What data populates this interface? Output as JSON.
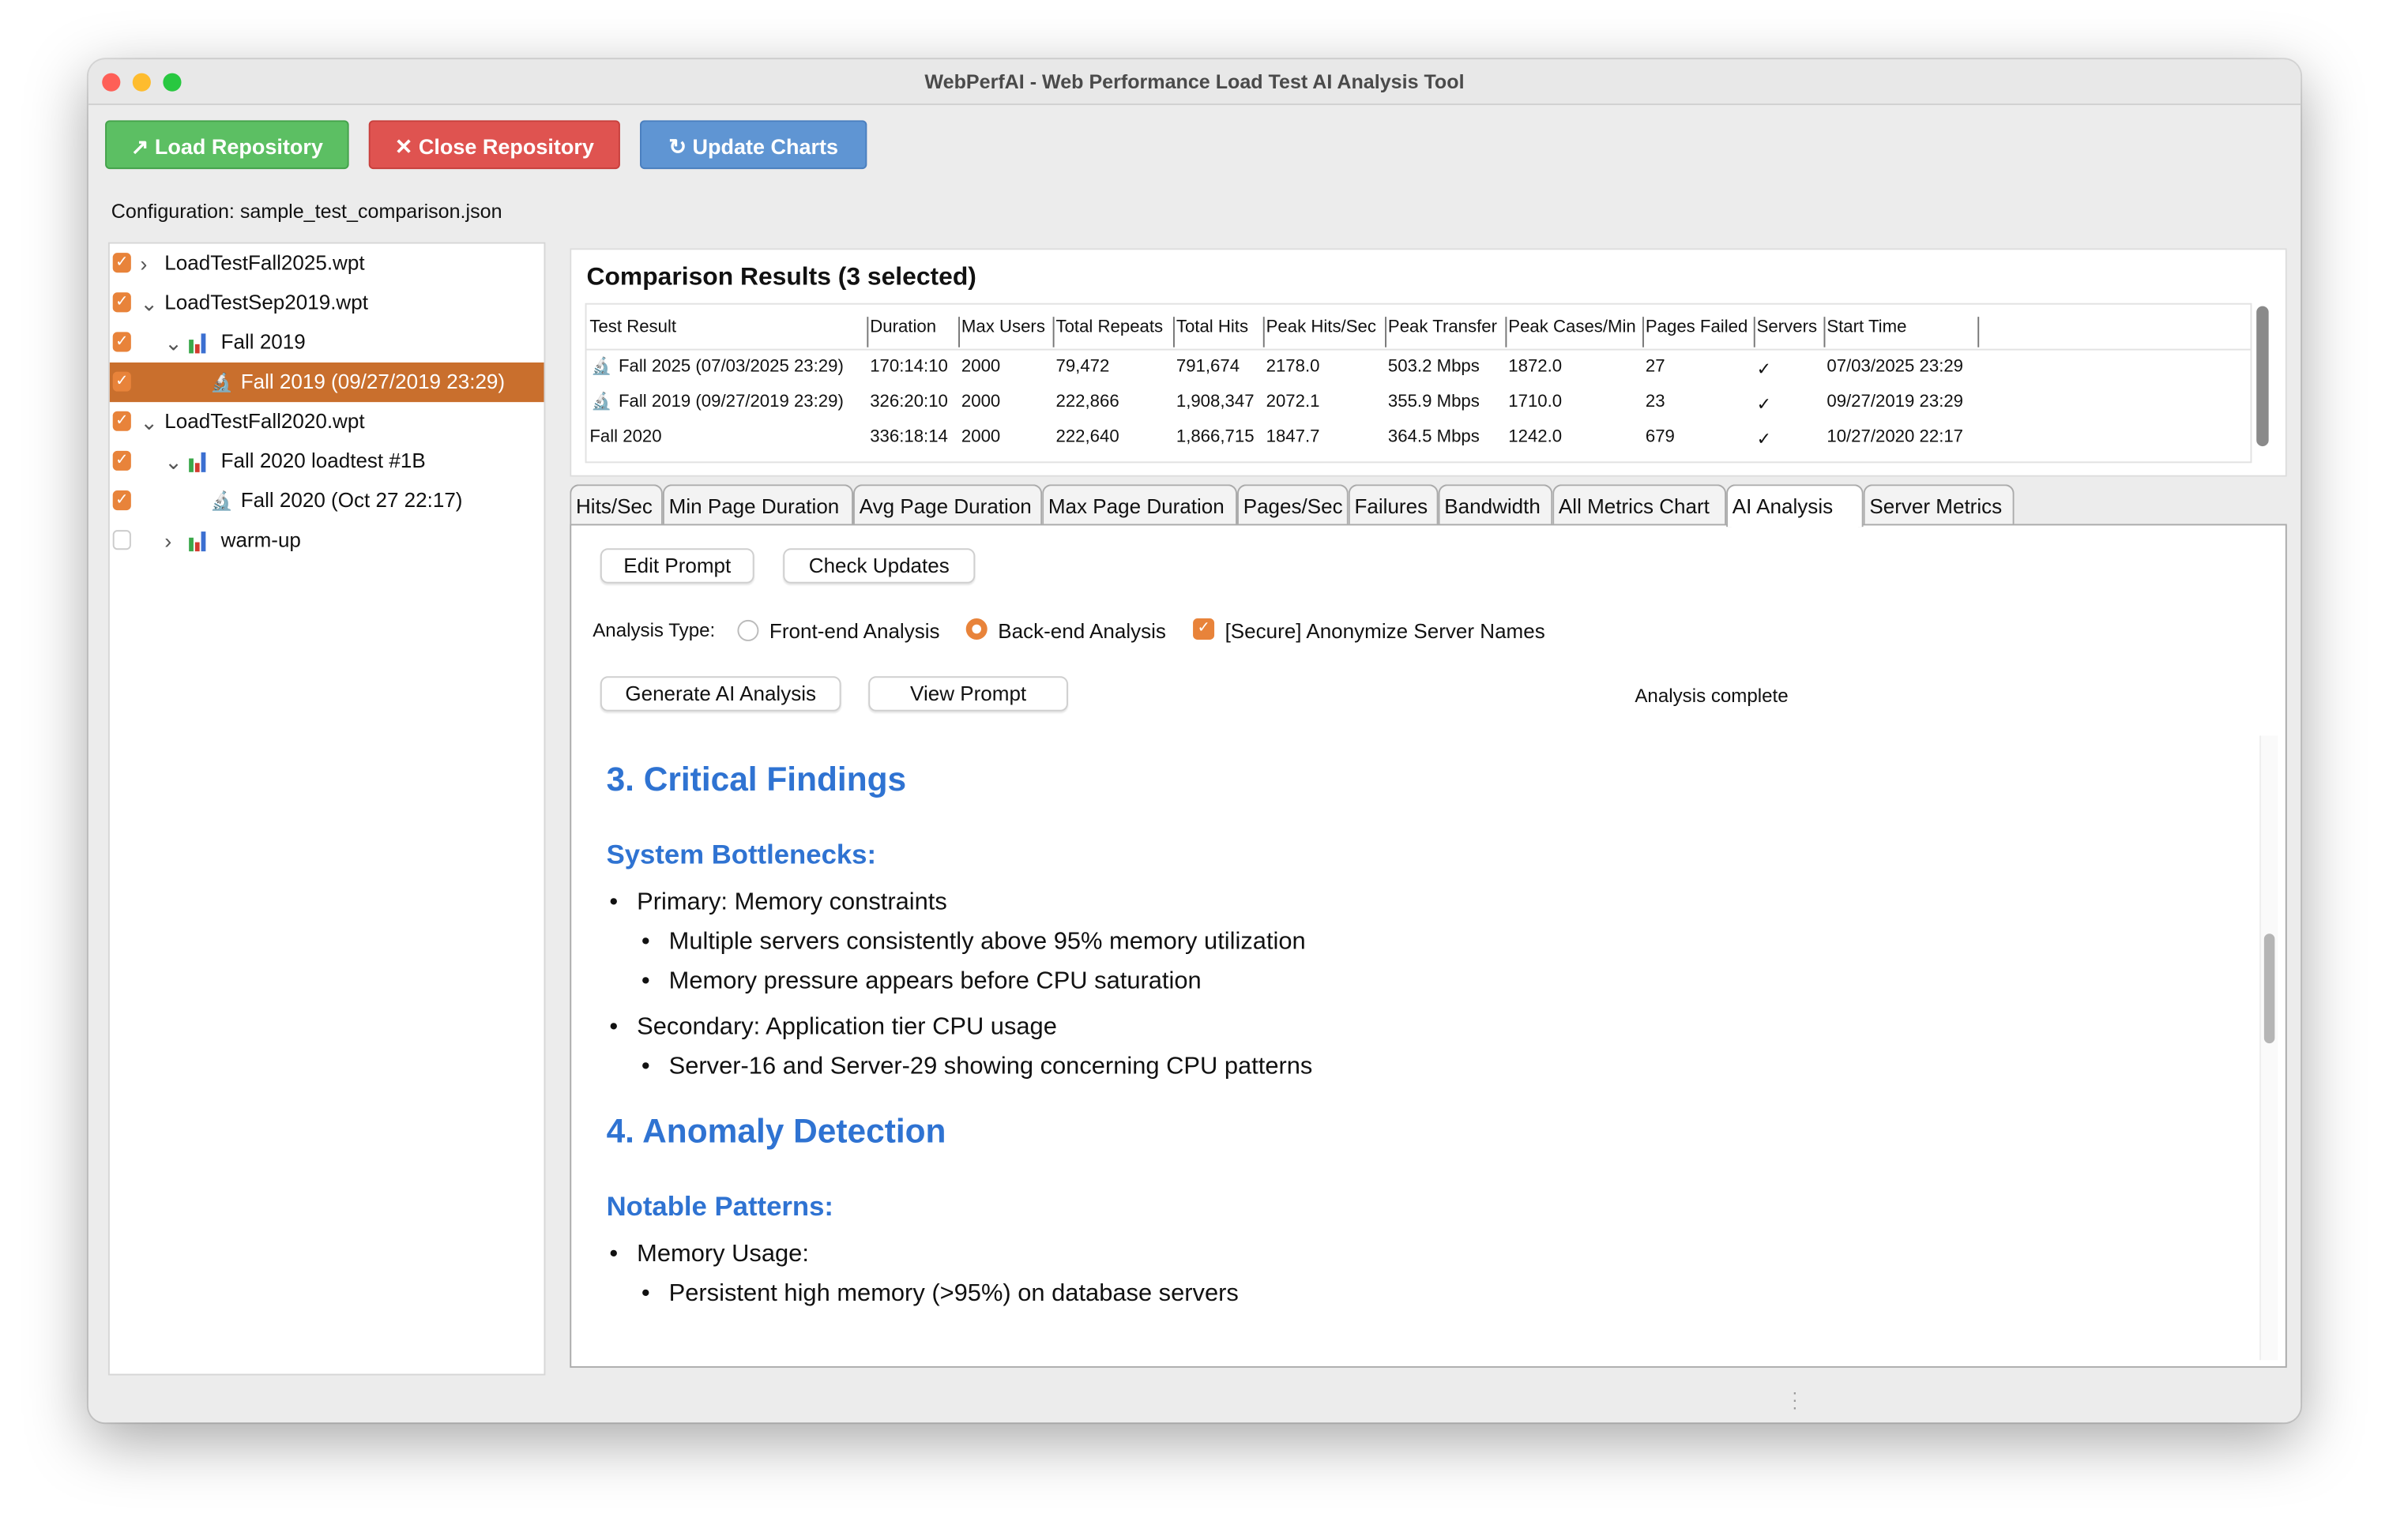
{
  "window": {
    "title": "WebPerfAI - Web Performance Load Test AI Analysis Tool"
  },
  "toolbar": {
    "load": "↗ Load Repository",
    "close": "✕ Close Repository",
    "update": "↻ Update Charts",
    "colors": {
      "load": "#5cbf63",
      "close": "#df5350",
      "update": "#5f95d3"
    }
  },
  "config": "Configuration: sample_test_comparison.json",
  "tree": [
    {
      "label": "LoadTestFall2025.wpt",
      "checked": true,
      "chevron": "›",
      "icon": ""
    },
    {
      "label": "LoadTestSep2019.wpt",
      "checked": true,
      "chevron": "⌄",
      "icon": ""
    },
    {
      "label": "Fall 2019",
      "checked": true,
      "chevron": "⌄",
      "icon": "bar-chart-icon"
    },
    {
      "label": "Fall 2019 (09/27/2019 23:29)",
      "checked": true,
      "chevron": "",
      "icon": "microscope-icon",
      "selected": true
    },
    {
      "label": "LoadTestFall2020.wpt",
      "checked": true,
      "chevron": "⌄",
      "icon": ""
    },
    {
      "label": "Fall 2020 loadtest #1B",
      "checked": true,
      "chevron": "⌄",
      "icon": "bar-chart-icon"
    },
    {
      "label": "Fall 2020 (Oct 27 22:17)",
      "checked": true,
      "chevron": "",
      "icon": "microscope-icon"
    },
    {
      "label": "warm-up",
      "checked": false,
      "chevron": "›",
      "icon": "bar-chart-icon"
    }
  ],
  "comparison": {
    "title": "Comparison Results (3 selected)",
    "columns": [
      "Test Result",
      "Duration",
      "Max Users",
      "Total Repeats",
      "Total Hits",
      "Peak Hits/Sec",
      "Peak Transfer",
      "Peak Cases/Min",
      "Pages Failed",
      "Servers",
      "Start Time"
    ],
    "rows": [
      [
        "Fall 2025 (07/03/2025 23:29)",
        "170:14:10",
        "2000",
        "79,472",
        "791,674",
        "2178.0",
        "503.2 Mbps",
        "1872.0",
        "27",
        "✓",
        "07/03/2025 23:29"
      ],
      [
        "Fall 2019 (09/27/2019 23:29)",
        "326:20:10",
        "2000",
        "222,866",
        "1,908,347",
        "2072.1",
        "355.9 Mbps",
        "1710.0",
        "23",
        "✓",
        "09/27/2019 23:29"
      ],
      [
        "Fall 2020",
        "336:18:14",
        "2000",
        "222,640",
        "1,866,715",
        "1847.7",
        "364.5 Mbps",
        "1242.0",
        "679",
        "✓",
        "10/27/2020 22:17"
      ]
    ]
  },
  "tabs": [
    "Hits/Sec",
    "Min Page Duration",
    "Avg Page Duration",
    "Max Page Duration",
    "Pages/Sec",
    "Failures",
    "Bandwidth",
    "All Metrics Chart",
    "AI Analysis",
    "Server Metrics"
  ],
  "active_tab": "AI Analysis",
  "ai": {
    "edit_prompt": "Edit Prompt",
    "check_updates": "Check Updates",
    "analysis_type_label": "Analysis Type:",
    "frontend": "Front-end Analysis",
    "backend": "Back-end Analysis",
    "anonymize": "[Secure] Anonymize Server Names",
    "selected_type": "Back-end Analysis",
    "anonymize_checked": true,
    "generate": "Generate AI Analysis",
    "view_prompt": "View Prompt",
    "status": "Analysis complete",
    "content": {
      "h1a": "3. Critical Findings",
      "h2a": "System Bottlenecks:",
      "b1": "Primary: Memory constraints",
      "b1a": "Multiple servers consistently above 95% memory utilization",
      "b1b": "Memory pressure appears before CPU saturation",
      "b2": "Secondary: Application tier CPU usage",
      "b2a": "Server-16 and Server-29 showing concerning CPU patterns",
      "h1b": "4. Anomaly Detection",
      "h2b": "Notable Patterns:",
      "b3": "Memory Usage:",
      "b3a": "Persistent high memory (>95%) on database servers"
    }
  }
}
